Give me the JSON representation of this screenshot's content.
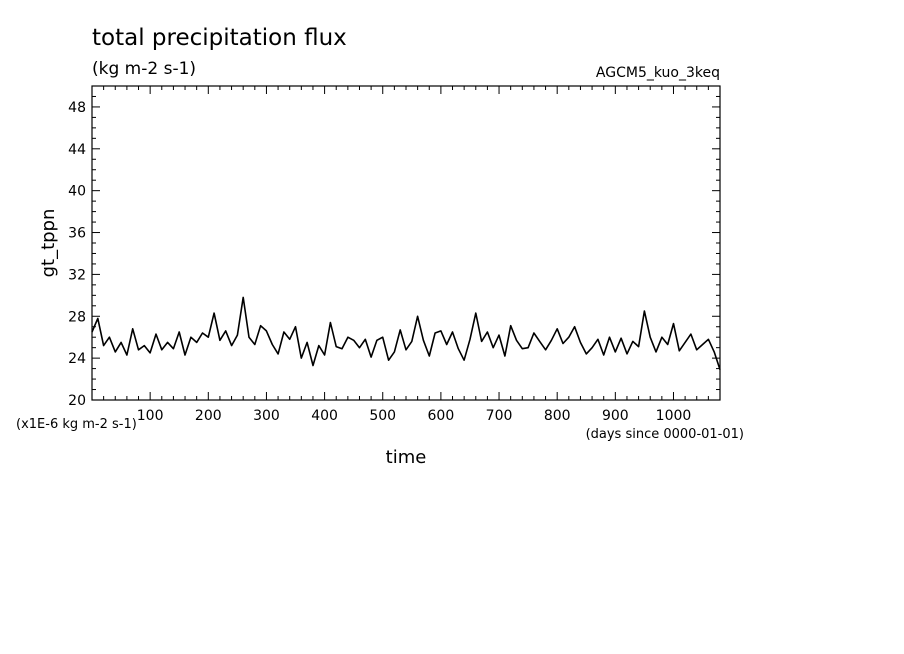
{
  "chart_data": {
    "type": "line",
    "title": "total precipitation flux",
    "units": "(kg m-2 s-1)",
    "dataset": "AGCM5_kuo_3keq",
    "xlabel": "time",
    "x_units": "(days since 0000-01-01)",
    "ylabel": "gt_tppn",
    "y_scale_note": "(x1E-6 kg m-2 s-1)",
    "xlim": [
      0,
      1080
    ],
    "ylim": [
      20,
      50
    ],
    "x_ticks": [
      100,
      200,
      300,
      400,
      500,
      600,
      700,
      800,
      900,
      1000
    ],
    "y_ticks": [
      20,
      24,
      28,
      32,
      36,
      40,
      44,
      48
    ],
    "grid": false,
    "series": [
      {
        "x": [
          0,
          10,
          20,
          30,
          40,
          50,
          60,
          70,
          80,
          90,
          100,
          110,
          120,
          130,
          140,
          150,
          160,
          170,
          180,
          190,
          200,
          210,
          220,
          230,
          240,
          250,
          260,
          270,
          280,
          290,
          300,
          310,
          320,
          330,
          340,
          350,
          360,
          370,
          380,
          390,
          400,
          410,
          420,
          430,
          440,
          450,
          460,
          470,
          480,
          490,
          500,
          510,
          520,
          530,
          540,
          550,
          560,
          570,
          580,
          590,
          600,
          610,
          620,
          630,
          640,
          650,
          660,
          670,
          680,
          690,
          700,
          710,
          720,
          730,
          740,
          750,
          760,
          770,
          780,
          790,
          800,
          810,
          820,
          830,
          840,
          850,
          860,
          870,
          880,
          890,
          900,
          910,
          920,
          930,
          940,
          950,
          960,
          970,
          980,
          990,
          1000,
          1010,
          1020,
          1030,
          1040,
          1050,
          1060,
          1070,
          1080
        ],
        "y": [
          26.5,
          27.8,
          25.2,
          26.0,
          24.6,
          25.5,
          24.3,
          26.8,
          24.8,
          25.2,
          24.5,
          26.3,
          24.8,
          25.5,
          24.9,
          26.5,
          24.3,
          26.0,
          25.5,
          26.4,
          26.0,
          28.3,
          25.7,
          26.6,
          25.2,
          26.2,
          29.8,
          26.0,
          25.3,
          27.1,
          26.6,
          25.3,
          24.4,
          26.5,
          25.8,
          27.0,
          24.0,
          25.5,
          23.3,
          25.2,
          24.3,
          27.4,
          25.1,
          24.9,
          26.0,
          25.7,
          25.0,
          25.8,
          24.1,
          25.7,
          26.0,
          23.8,
          24.6,
          26.7,
          24.8,
          25.6,
          28.0,
          25.7,
          24.2,
          26.4,
          26.6,
          25.3,
          26.5,
          24.9,
          23.8,
          25.8,
          28.3,
          25.6,
          26.5,
          25.0,
          26.2,
          24.2,
          27.1,
          25.7,
          24.9,
          25.0,
          26.4,
          25.6,
          24.8,
          25.7,
          26.8,
          25.4,
          26.0,
          27.0,
          25.5,
          24.4,
          25.0,
          25.8,
          24.3,
          26.0,
          24.6,
          25.9,
          24.4,
          25.6,
          25.1,
          28.5,
          26.0,
          24.6,
          26.0,
          25.3,
          27.3,
          24.7,
          25.5,
          26.3,
          24.8,
          25.3,
          25.8,
          24.6,
          22.9
        ]
      }
    ]
  }
}
